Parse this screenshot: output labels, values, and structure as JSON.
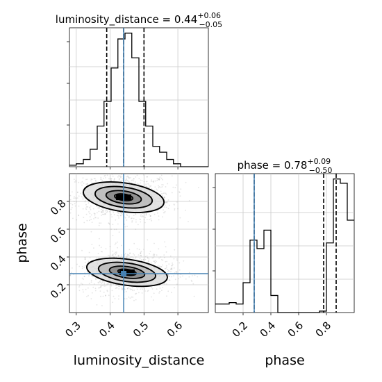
{
  "chart_data": {
    "type": "corner",
    "parameters": [
      "luminosity_distance",
      "phase"
    ],
    "truths": {
      "luminosity_distance": 0.44,
      "phase": 0.28
    },
    "truth_color": "#4682b4",
    "titles": {
      "luminosity_distance": {
        "label": "luminosity_distance = ",
        "value": "0.44",
        "plus": "+0.06",
        "minus": "−0.05"
      },
      "phase": {
        "label": "phase = ",
        "value": "0.78",
        "plus": "+0.09",
        "minus": "−0.50"
      }
    },
    "xlabels": {
      "luminosity_distance": "luminosity_distance",
      "phase": "phase"
    },
    "ylabel_2d": "phase",
    "ranges": {
      "luminosity_distance": [
        0.28,
        0.69
      ],
      "phase": [
        0.0,
        1.0
      ]
    },
    "ticks": {
      "luminosity_distance": [
        "0.3",
        "0.4",
        "0.5",
        "0.6"
      ],
      "phase": [
        "0.2",
        "0.4",
        "0.6",
        "0.8"
      ]
    },
    "hist_luminosity_distance": {
      "bin_edges": [
        0.28,
        0.3,
        0.321,
        0.341,
        0.362,
        0.382,
        0.403,
        0.423,
        0.444,
        0.464,
        0.485,
        0.505,
        0.526,
        0.546,
        0.567,
        0.587,
        0.608,
        0.628,
        0.649,
        0.669,
        0.69
      ],
      "counts": [
        0.01,
        0.02,
        0.05,
        0.12,
        0.28,
        0.45,
        0.68,
        0.88,
        0.92,
        0.75,
        0.45,
        0.28,
        0.14,
        0.1,
        0.05,
        0.02,
        0.0,
        0.0,
        0.0,
        0.0
      ],
      "quantiles": [
        0.39,
        0.44,
        0.5
      ]
    },
    "hist_phase": {
      "bin_edges": [
        0.0,
        0.05,
        0.1,
        0.15,
        0.2,
        0.25,
        0.3,
        0.35,
        0.4,
        0.45,
        0.5,
        0.55,
        0.6,
        0.65,
        0.7,
        0.75,
        0.8,
        0.85,
        0.9,
        0.95,
        1.0
      ],
      "counts": [
        0.06,
        0.06,
        0.07,
        0.06,
        0.21,
        0.51,
        0.45,
        0.58,
        0.12,
        0.0,
        0.0,
        0.0,
        0.0,
        0.0,
        0.0,
        0.01,
        0.49,
        0.94,
        0.91,
        0.65
      ],
      "quantiles": [
        0.28,
        0.78,
        0.87
      ]
    },
    "density_clusters": [
      {
        "x": 0.44,
        "y": 0.83,
        "sx": 0.05,
        "sy": 0.055,
        "n": 1100
      },
      {
        "x": 0.45,
        "y": 0.29,
        "sx": 0.05,
        "sy": 0.05,
        "n": 1000
      }
    ]
  }
}
